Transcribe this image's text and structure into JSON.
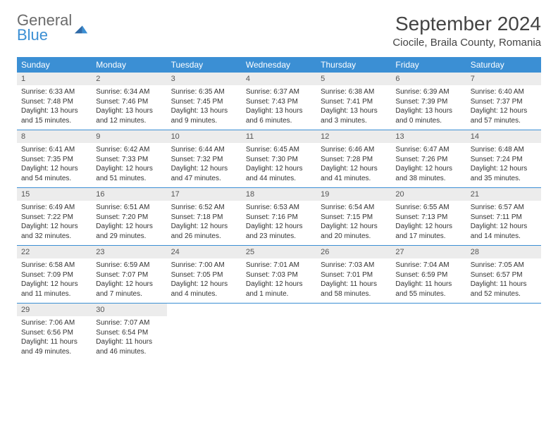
{
  "logo": {
    "general": "General",
    "blue": "Blue"
  },
  "title": "September 2024",
  "location": "Ciocile, Braila County, Romania",
  "day_names": [
    "Sunday",
    "Monday",
    "Tuesday",
    "Wednesday",
    "Thursday",
    "Friday",
    "Saturday"
  ],
  "header_bg": "#3b8fd4",
  "numbar_bg": "#ececec",
  "weeks": [
    [
      {
        "n": "1",
        "sr": "6:33 AM",
        "ss": "7:48 PM",
        "dl": "13 hours and 15 minutes."
      },
      {
        "n": "2",
        "sr": "6:34 AM",
        "ss": "7:46 PM",
        "dl": "13 hours and 12 minutes."
      },
      {
        "n": "3",
        "sr": "6:35 AM",
        "ss": "7:45 PM",
        "dl": "13 hours and 9 minutes."
      },
      {
        "n": "4",
        "sr": "6:37 AM",
        "ss": "7:43 PM",
        "dl": "13 hours and 6 minutes."
      },
      {
        "n": "5",
        "sr": "6:38 AM",
        "ss": "7:41 PM",
        "dl": "13 hours and 3 minutes."
      },
      {
        "n": "6",
        "sr": "6:39 AM",
        "ss": "7:39 PM",
        "dl": "13 hours and 0 minutes."
      },
      {
        "n": "7",
        "sr": "6:40 AM",
        "ss": "7:37 PM",
        "dl": "12 hours and 57 minutes."
      }
    ],
    [
      {
        "n": "8",
        "sr": "6:41 AM",
        "ss": "7:35 PM",
        "dl": "12 hours and 54 minutes."
      },
      {
        "n": "9",
        "sr": "6:42 AM",
        "ss": "7:33 PM",
        "dl": "12 hours and 51 minutes."
      },
      {
        "n": "10",
        "sr": "6:44 AM",
        "ss": "7:32 PM",
        "dl": "12 hours and 47 minutes."
      },
      {
        "n": "11",
        "sr": "6:45 AM",
        "ss": "7:30 PM",
        "dl": "12 hours and 44 minutes."
      },
      {
        "n": "12",
        "sr": "6:46 AM",
        "ss": "7:28 PM",
        "dl": "12 hours and 41 minutes."
      },
      {
        "n": "13",
        "sr": "6:47 AM",
        "ss": "7:26 PM",
        "dl": "12 hours and 38 minutes."
      },
      {
        "n": "14",
        "sr": "6:48 AM",
        "ss": "7:24 PM",
        "dl": "12 hours and 35 minutes."
      }
    ],
    [
      {
        "n": "15",
        "sr": "6:49 AM",
        "ss": "7:22 PM",
        "dl": "12 hours and 32 minutes."
      },
      {
        "n": "16",
        "sr": "6:51 AM",
        "ss": "7:20 PM",
        "dl": "12 hours and 29 minutes."
      },
      {
        "n": "17",
        "sr": "6:52 AM",
        "ss": "7:18 PM",
        "dl": "12 hours and 26 minutes."
      },
      {
        "n": "18",
        "sr": "6:53 AM",
        "ss": "7:16 PM",
        "dl": "12 hours and 23 minutes."
      },
      {
        "n": "19",
        "sr": "6:54 AM",
        "ss": "7:15 PM",
        "dl": "12 hours and 20 minutes."
      },
      {
        "n": "20",
        "sr": "6:55 AM",
        "ss": "7:13 PM",
        "dl": "12 hours and 17 minutes."
      },
      {
        "n": "21",
        "sr": "6:57 AM",
        "ss": "7:11 PM",
        "dl": "12 hours and 14 minutes."
      }
    ],
    [
      {
        "n": "22",
        "sr": "6:58 AM",
        "ss": "7:09 PM",
        "dl": "12 hours and 11 minutes."
      },
      {
        "n": "23",
        "sr": "6:59 AM",
        "ss": "7:07 PM",
        "dl": "12 hours and 7 minutes."
      },
      {
        "n": "24",
        "sr": "7:00 AM",
        "ss": "7:05 PM",
        "dl": "12 hours and 4 minutes."
      },
      {
        "n": "25",
        "sr": "7:01 AM",
        "ss": "7:03 PM",
        "dl": "12 hours and 1 minute."
      },
      {
        "n": "26",
        "sr": "7:03 AM",
        "ss": "7:01 PM",
        "dl": "11 hours and 58 minutes."
      },
      {
        "n": "27",
        "sr": "7:04 AM",
        "ss": "6:59 PM",
        "dl": "11 hours and 55 minutes."
      },
      {
        "n": "28",
        "sr": "7:05 AM",
        "ss": "6:57 PM",
        "dl": "11 hours and 52 minutes."
      }
    ],
    [
      {
        "n": "29",
        "sr": "7:06 AM",
        "ss": "6:56 PM",
        "dl": "11 hours and 49 minutes."
      },
      {
        "n": "30",
        "sr": "7:07 AM",
        "ss": "6:54 PM",
        "dl": "11 hours and 46 minutes."
      },
      null,
      null,
      null,
      null,
      null
    ]
  ],
  "labels": {
    "sunrise": "Sunrise: ",
    "sunset": "Sunset: ",
    "daylight": "Daylight: "
  }
}
